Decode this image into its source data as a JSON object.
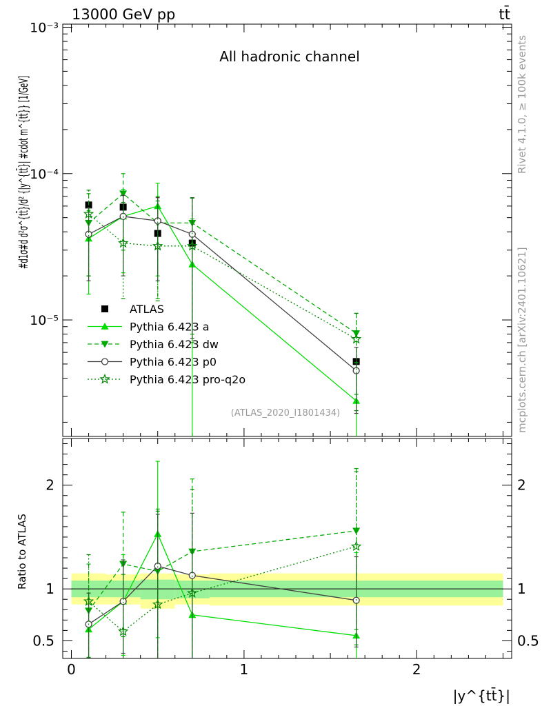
{
  "header": {
    "energy_label": "13000 GeV pp",
    "process_label": "tt̄",
    "channel_label": "All hadronic channel",
    "side_label_top": "Rivet 4.1.0, ≥ 100k events",
    "side_label_bottom": "mcplots.cern.ch [arXiv:2401.10621]",
    "analysis_label": "(ATLAS_2020_I1801434)"
  },
  "chart_data": [
    {
      "type": "line",
      "panel": "main",
      "ylabel": "#d1σ#d d²σ^{tt̄}/d² {|y^{tt̄}| #cdot m^{tt̄}} [1/GeV]",
      "yscale": "log",
      "ylim": [
        1.6e-06,
        0.00105
      ],
      "xlim": [
        -0.05,
        2.55
      ],
      "y_ticks": [
        {
          "value": 1e-05,
          "label": "10⁻⁵"
        },
        {
          "value": 0.0001,
          "label": "10⁻⁴"
        },
        {
          "value": 0.001,
          "label": "10⁻³"
        }
      ],
      "legend": [
        "ATLAS",
        "Pythia 6.423 a",
        "Pythia 6.423 dw",
        "Pythia 6.423 p0",
        "Pythia 6.423 pro-q2o"
      ],
      "series": [
        {
          "name": "ATLAS",
          "marker": "square",
          "color": "#000000",
          "dash": "none",
          "x": [
            0.1,
            0.3,
            0.5,
            0.7,
            1.65
          ],
          "values": [
            6.1e-05,
            5.9e-05,
            3.9e-05,
            3.35e-05,
            5.2e-06
          ],
          "err_lo": [
            0,
            0,
            0,
            0,
            0
          ],
          "err_hi": [
            0,
            0,
            0,
            0,
            0
          ]
        },
        {
          "name": "Pythia 6.423 a",
          "marker": "triangle-up",
          "color": "#00dd00",
          "dash": "none",
          "x": [
            0.1,
            0.3,
            0.5,
            0.7,
            1.65
          ],
          "values": [
            3.6e-05,
            5.1e-05,
            6e-05,
            2.4e-05,
            2.8e-06
          ],
          "err_lo": [
            2.1e-05,
            3e-05,
            4e-05,
            2.37e-05,
            2.78e-06
          ],
          "err_hi": [
            2e-05,
            2.7e-05,
            2.6e-05,
            2.5e-05,
            2.3e-06
          ]
        },
        {
          "name": "Pythia 6.423 dw",
          "marker": "triangle-down",
          "color": "#00aa00",
          "dash": "6,4",
          "x": [
            0.1,
            0.3,
            0.5,
            0.7,
            1.65
          ],
          "values": [
            4.6e-05,
            7.3e-05,
            4.6e-05,
            4.6e-05,
            8.1e-06
          ],
          "err_lo": [
            2.6e-05,
            4.3e-05,
            3.2e-05,
            3.8e-05,
            5e-06
          ],
          "err_hi": [
            2.7e-05,
            2.7e-05,
            2.4e-05,
            2.2e-05,
            3e-06
          ]
        },
        {
          "name": "Pythia 6.423 p0",
          "marker": "circle-open",
          "color": "#404040",
          "dash": "none",
          "x": [
            0.1,
            0.3,
            0.5,
            0.7,
            1.65
          ],
          "values": [
            3.85e-05,
            5.1e-05,
            4.75e-05,
            3.85e-05,
            4.5e-06
          ],
          "err_lo": [
            2e-05,
            3.1e-05,
            2.9e-05,
            3.1e-05,
            2.2e-06
          ],
          "err_hi": [
            2e-05,
            2e-05,
            2.1e-05,
            3e-05,
            2e-06
          ]
        },
        {
          "name": "Pythia 6.423 pro-q2o",
          "marker": "star",
          "color": "#008800",
          "dash": "2,3",
          "x": [
            0.1,
            0.3,
            0.5,
            0.7,
            1.65
          ],
          "values": [
            5.3e-05,
            3.35e-05,
            3.2e-05,
            3.2e-05,
            7.4e-06
          ],
          "err_lo": [
            3.3e-05,
            1.95e-05,
            1.85e-05,
            2.5e-05,
            5e-06
          ],
          "err_hi": [
            2.4e-05,
            3e-05,
            3.3e-05,
            3.6e-05,
            3.7e-06
          ]
        }
      ]
    },
    {
      "type": "line",
      "panel": "ratio",
      "xlabel": "|y^{tt̄}|",
      "ylabel": "Ratio to ATLAS",
      "ylim": [
        0.33,
        2.45
      ],
      "xlim": [
        -0.05,
        2.55
      ],
      "y_ticks": [
        {
          "value": 0.5,
          "label": "0.5"
        },
        {
          "value": 1,
          "label": "1"
        },
        {
          "value": 2,
          "label": "2"
        }
      ],
      "x_ticks": [
        {
          "value": 0,
          "label": "0"
        },
        {
          "value": 1,
          "label": "1"
        },
        {
          "value": 2,
          "label": "2"
        }
      ],
      "bands": [
        {
          "x0": 0.0,
          "x1": 0.2,
          "stat_lo": 0.92,
          "stat_hi": 1.08,
          "tot_lo": 0.85,
          "tot_hi": 1.15
        },
        {
          "x0": 0.2,
          "x1": 0.4,
          "stat_lo": 0.92,
          "stat_hi": 1.08,
          "tot_lo": 0.85,
          "tot_hi": 1.14
        },
        {
          "x0": 0.4,
          "x1": 0.6,
          "stat_lo": 0.9,
          "stat_hi": 1.09,
          "tot_lo": 0.81,
          "tot_hi": 1.15
        },
        {
          "x0": 0.6,
          "x1": 0.8,
          "stat_lo": 0.91,
          "stat_hi": 1.08,
          "tot_lo": 0.85,
          "tot_hi": 1.14
        },
        {
          "x0": 0.8,
          "x1": 2.5,
          "stat_lo": 0.92,
          "stat_hi": 1.08,
          "tot_lo": 0.84,
          "tot_hi": 1.15
        }
      ],
      "series": [
        {
          "name": "Pythia 6.423 a",
          "marker": "triangle-up",
          "color": "#00dd00",
          "dash": "none",
          "x": [
            0.1,
            0.3,
            0.5,
            0.7,
            1.65
          ],
          "values": [
            0.61,
            0.88,
            1.53,
            0.75,
            0.55
          ],
          "err_lo": [
            0.28,
            0.52,
            1.0,
            0.6,
            0.45
          ],
          "err_hi": [
            0.35,
            0.45,
            0.7,
            0.6,
            0.8
          ]
        },
        {
          "name": "Pythia 6.423 dw",
          "marker": "triangle-down",
          "color": "#00aa00",
          "dash": "6,4",
          "x": [
            0.1,
            0.3,
            0.5,
            0.7,
            1.65
          ],
          "values": [
            0.79,
            1.24,
            1.17,
            1.36,
            1.56
          ],
          "err_lo": [
            0.45,
            0.7,
            0.85,
            1.03,
            0.95
          ],
          "err_hi": [
            0.45,
            0.5,
            0.6,
            0.7,
            0.6
          ]
        },
        {
          "name": "Pythia 6.423 p0",
          "marker": "circle-open",
          "color": "#404040",
          "dash": "none",
          "x": [
            0.1,
            0.3,
            0.5,
            0.7,
            1.65
          ],
          "values": [
            0.66,
            0.88,
            1.22,
            1.13,
            0.89
          ],
          "err_lo": [
            0.33,
            0.5,
            0.9,
            0.95,
            0.45
          ],
          "err_hi": [
            0.3,
            0.4,
            0.5,
            0.6,
            0.42
          ]
        },
        {
          "name": "Pythia 6.423 pro-q2o",
          "marker": "star",
          "color": "#008800",
          "dash": "2,3",
          "x": [
            0.1,
            0.3,
            0.5,
            0.7,
            1.65
          ],
          "values": [
            0.88,
            0.59,
            0.85,
            0.96,
            1.41
          ],
          "err_lo": [
            0.54,
            0.33,
            0.53,
            0.75,
            0.95
          ],
          "err_hi": [
            0.45,
            0.55,
            0.9,
            1.0,
            0.72
          ]
        }
      ]
    }
  ]
}
